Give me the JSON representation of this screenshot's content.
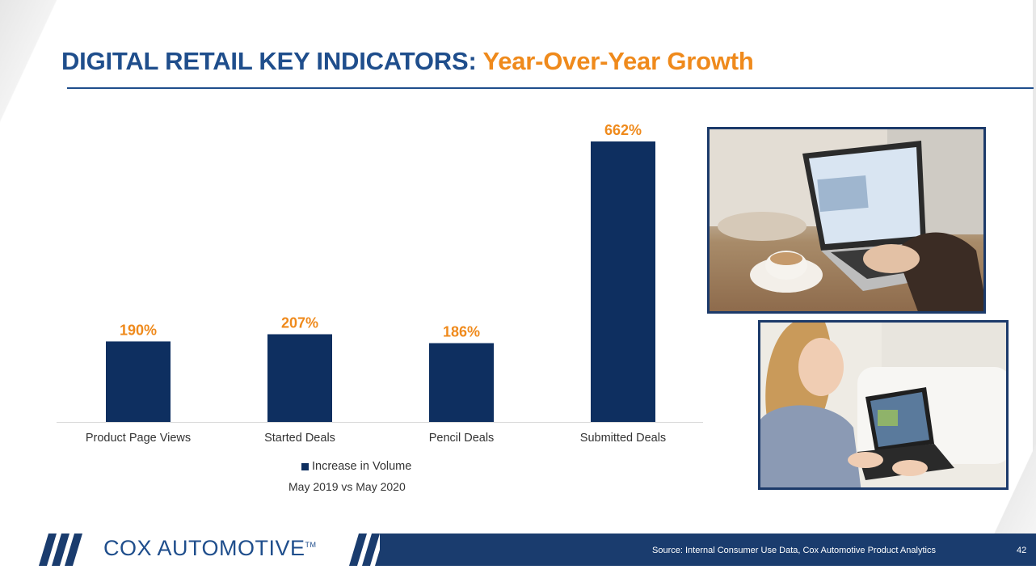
{
  "title": {
    "main": "DIGITAL RETAIL KEY INDICATORS:",
    "accent": "Year-Over-Year Growth"
  },
  "colors": {
    "title_blue": "#1f4e8c",
    "accent_orange": "#ef8a1c",
    "bar_navy": "#0e2f60",
    "footer_navy": "#1a3c6e"
  },
  "chart_data": {
    "type": "bar",
    "categories": [
      "Product Page Views",
      "Started Deals",
      "Pencil Deals",
      "Submitted Deals"
    ],
    "series": [
      {
        "name": "Increase in Volume",
        "values": [
          190,
          207,
          186,
          662
        ]
      }
    ],
    "data_labels": [
      "190%",
      "207%",
      "186%",
      "662%"
    ],
    "subtitle": "May 2019 vs May 2020",
    "ylim": [
      0,
      662
    ],
    "grid": false,
    "legend_position": "bottom"
  },
  "legend": {
    "label": "Increase in Volume"
  },
  "footer": {
    "logo_text": "COX AUTOMOTIVE",
    "logo_tm": "TM",
    "source": "Source: Internal Consumer Use Data, Cox Automotive Product Analytics",
    "page_number": "42"
  }
}
